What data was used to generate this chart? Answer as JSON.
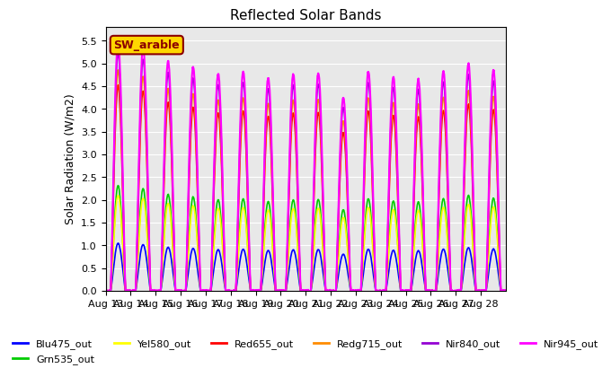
{
  "title": "Reflected Solar Bands",
  "ylabel": "Solar Radiation (W/m2)",
  "annotation_text": "SW_arable",
  "annotation_color": "#8B0000",
  "annotation_bg": "#FFD700",
  "background_color": "#E8E8E8",
  "ylim": [
    0,
    5.8
  ],
  "yticks": [
    0.0,
    0.5,
    1.0,
    1.5,
    2.0,
    2.5,
    3.0,
    3.5,
    4.0,
    4.5,
    5.0,
    5.5
  ],
  "date_labels": [
    "Aug 13",
    "Aug 14",
    "Aug 15",
    "Aug 16",
    "Aug 17",
    "Aug 18",
    "Aug 19",
    "Aug 20",
    "Aug 21",
    "Aug 22",
    "Aug 23",
    "Aug 24",
    "Aug 25",
    "Aug 26",
    "Aug 27",
    "Aug 28"
  ],
  "series_names": [
    "Blu475_out",
    "Grn535_out",
    "Yel580_out",
    "Red655_out",
    "Redg715_out",
    "Nir840_out",
    "Nir945_out"
  ],
  "series_colors": [
    "#0000FF",
    "#00CC00",
    "#FFFF00",
    "#FF0000",
    "#FF8C00",
    "#9400D3",
    "#FF00FF"
  ],
  "series_lw": [
    1.2,
    1.2,
    1.2,
    1.2,
    1.2,
    1.2,
    1.5
  ],
  "n_days": 16,
  "pts_per_day": 144,
  "day_peaks": [
    5.5,
    5.35,
    5.05,
    4.92,
    4.77,
    4.82,
    4.68,
    4.76,
    4.78,
    4.25,
    4.82,
    4.7,
    4.65,
    4.83,
    5.0,
    4.85
  ],
  "scale_factors": [
    0.19,
    0.42,
    0.38,
    0.82,
    0.88,
    0.95,
    1.0
  ]
}
